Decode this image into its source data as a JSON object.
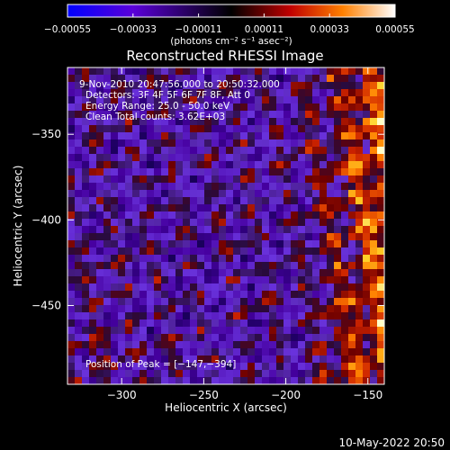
{
  "chart_data": {
    "type": "heatmap",
    "title": "Reconstructed RHESSI Image",
    "xlabel": "Heliocentric X (arcsec)",
    "ylabel": "Heliocentric Y (arcsec)",
    "xlim": [
      -333,
      -140
    ],
    "ylim": [
      -496,
      -311
    ],
    "x_ticks": [
      {
        "value": -300,
        "label": "−300"
      },
      {
        "value": -250,
        "label": "−250"
      },
      {
        "value": -200,
        "label": "−200"
      },
      {
        "value": -150,
        "label": "−150"
      }
    ],
    "y_ticks": [
      {
        "value": -350,
        "label": "−350"
      },
      {
        "value": -400,
        "label": "−400"
      },
      {
        "value": -450,
        "label": "−450"
      }
    ],
    "colorbar": {
      "min": -0.00055,
      "max": 0.00055,
      "ticks": [
        {
          "value": -0.00055,
          "label": "−0.00055"
        },
        {
          "value": -0.00033,
          "label": "−0.00033"
        },
        {
          "value": -0.00011,
          "label": "−0.00011"
        },
        {
          "value": 0.00011,
          "label": "0.00011"
        },
        {
          "value": 0.00033,
          "label": "0.00033"
        },
        {
          "value": 0.00055,
          "label": "0.00055"
        }
      ],
      "units": "(photons cm⁻² s⁻¹ asec⁻²)"
    },
    "info_lines": [
      "9-Nov-2010 20:47:56.000 to 20:50:32.000",
      "Detectors: 3F 4F 5F 6F 7F 8F, Att 0",
      "Energy Range: 25.0 - 50.0 keV",
      "Clean     Total counts: 3.62E+03"
    ],
    "peak_label": "Position of Peak = [−147,−394]",
    "peak": {
      "x": -147,
      "y": -394
    },
    "grid": false
  },
  "footer": {
    "timestamp": "10-May-2022 20:50"
  }
}
